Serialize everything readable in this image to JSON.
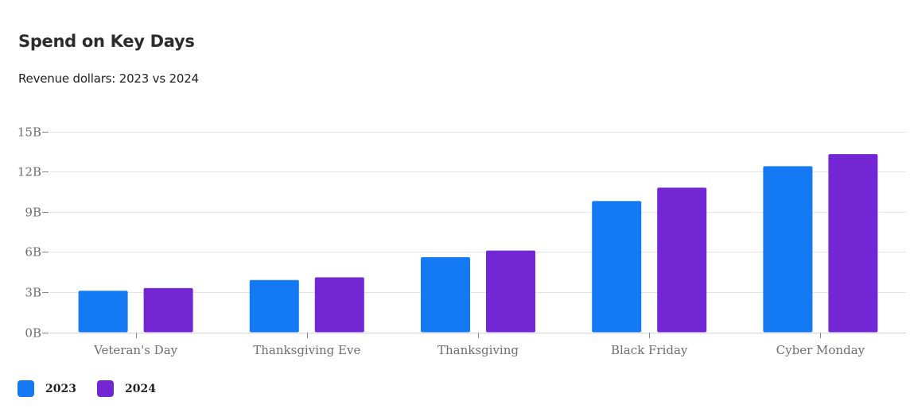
{
  "chart_data": {
    "type": "bar",
    "title": "Spend on Key Days",
    "subtitle": "Revenue dollars: 2023 vs 2024",
    "categories": [
      "Veteran's Day",
      "Thanksgiving Eve",
      "Thanksgiving",
      "Black Friday",
      "Cyber Monday"
    ],
    "series": [
      {
        "name": "2023",
        "color": "#147af3",
        "values": [
          3.1,
          3.9,
          5.6,
          9.8,
          12.4
        ]
      },
      {
        "name": "2024",
        "color": "#7326d3",
        "values": [
          3.3,
          4.1,
          6.1,
          10.8,
          13.3
        ]
      }
    ],
    "y_unit": "B",
    "ylim": [
      0,
      15
    ],
    "yticks": [
      0,
      3,
      6,
      9,
      12,
      15
    ],
    "ytick_labels": [
      "0B",
      "3B",
      "6B",
      "9B",
      "12B",
      "15B"
    ],
    "grid": true,
    "legend_position": "bottom-left"
  }
}
